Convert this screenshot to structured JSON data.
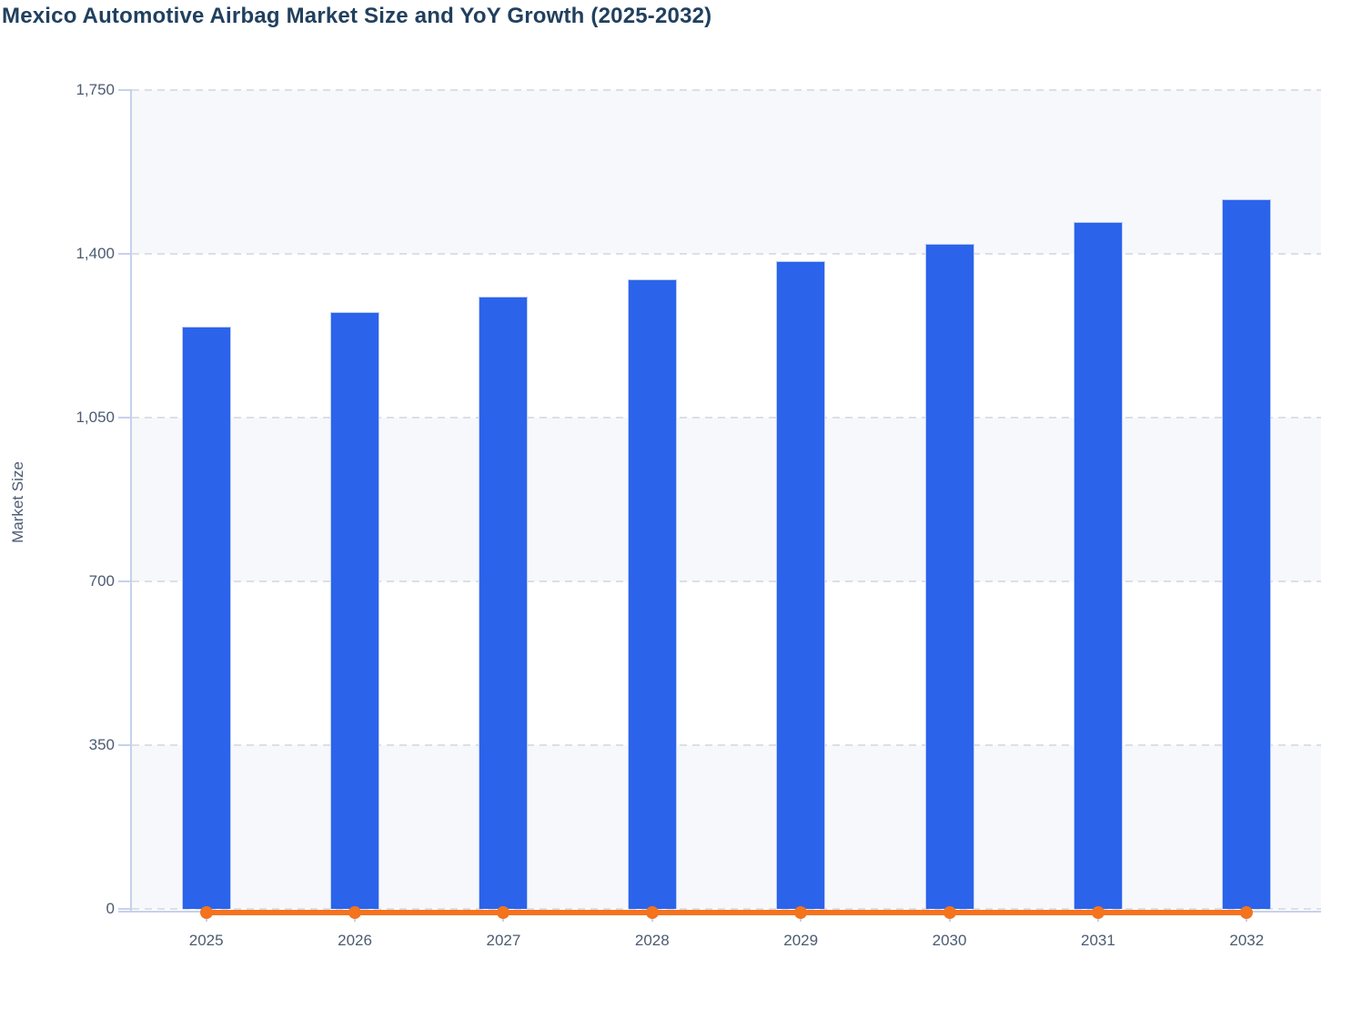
{
  "title": "Mexico Automotive Airbag Market Size and YoY Growth (2025-2032)",
  "y_axis": {
    "label": "Market Size",
    "tick_labels": [
      "0",
      "350",
      "700",
      "1,050",
      "1,400",
      "1,750"
    ]
  },
  "x_axis": {
    "categories": [
      "2025",
      "2026",
      "2027",
      "2028",
      "2029",
      "2030",
      "2031",
      "2032"
    ]
  },
  "colors": {
    "bar": "#2b63ea",
    "line": "#f4731d",
    "band": "#f6f8fb",
    "grid": "#dcdfe6",
    "axis": "#c7d1ec",
    "title_text": "#21405f",
    "tick_text": "#4c5b72"
  },
  "chart_data": {
    "type": "bar",
    "subtype": "bar with line overlay",
    "title": "Mexico Automotive Airbag Market Size and YoY Growth (2025-2032)",
    "categories": [
      2025,
      2026,
      2027,
      2028,
      2029,
      2030,
      2031,
      2032
    ],
    "series": [
      {
        "name": "Market Size",
        "type": "bar",
        "values": [
          1244,
          1275,
          1309,
          1346,
          1385,
          1422,
          1468,
          1517
        ]
      },
      {
        "name": "YoY Growth",
        "type": "line",
        "values": [
          2.5,
          2.5,
          2.7,
          2.8,
          2.9,
          2.7,
          3.2,
          3.3
        ],
        "render_note": "plotted on same axis, renders flat at ~0"
      }
    ],
    "xlabel": "",
    "ylabel": "Market Size",
    "ylim": [
      0,
      1750
    ],
    "yticks": [
      0,
      350,
      700,
      1050,
      1400,
      1750
    ],
    "grid": "horizontal dashed",
    "background_bands": "alternating light bands between gridlines",
    "legend": "none"
  }
}
